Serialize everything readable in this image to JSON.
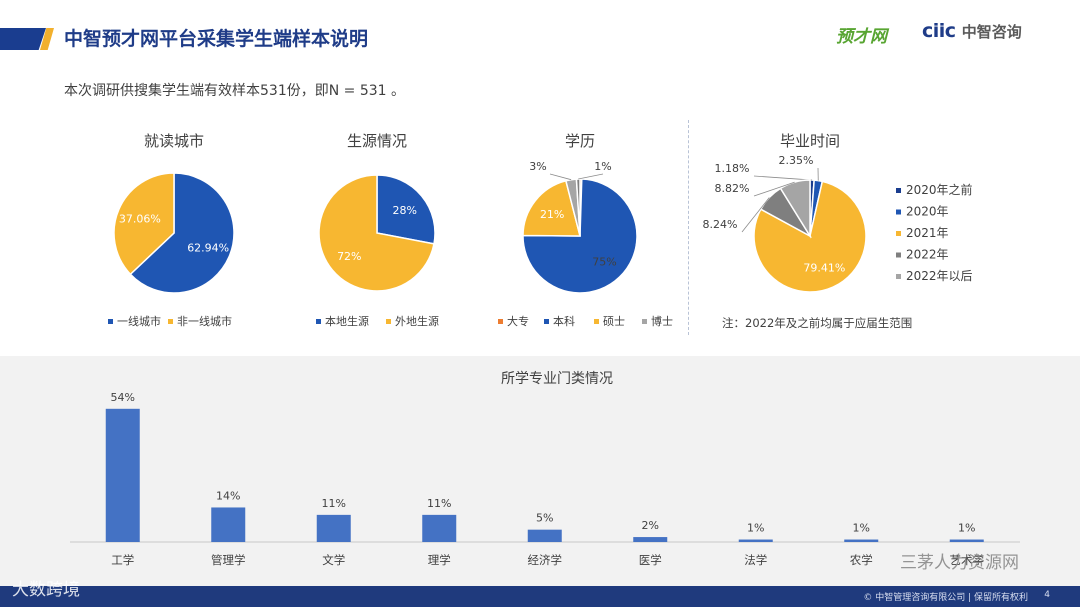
{
  "header": {
    "title": "中智预才网平台采集学生端样本说明",
    "logo_primary": "预才网",
    "logo_secondary_mark": "ciic",
    "logo_secondary_name": "中智咨询"
  },
  "subtitle": "本次调研供搜集学生端有效样本531份，即N = 531 。",
  "pies": [
    {
      "title": "就读城市",
      "slices": [
        {
          "label": "一线城市",
          "value": 62.94,
          "text": "62.94%",
          "color": "#1f56b3",
          "label_color": "#ffffff"
        },
        {
          "label": "非一线城市",
          "value": 37.06,
          "text": "37.06%",
          "color": "#f7b731",
          "label_color": "#ffffff"
        }
      ]
    },
    {
      "title": "生源情况",
      "slices": [
        {
          "label": "本地生源",
          "value": 28,
          "text": "28%",
          "color": "#1f56b3",
          "label_color": "#ffffff"
        },
        {
          "label": "外地生源",
          "value": 72,
          "text": "72%",
          "color": "#f7b731",
          "label_color": "#ffffff"
        }
      ]
    },
    {
      "title": "学历",
      "slices": [
        {
          "label": "大专",
          "value": 0.5,
          "text": "",
          "color": "#ed7d31",
          "label_color": "#ffffff"
        },
        {
          "label": "本科",
          "value": 75,
          "text": "75%",
          "color": "#1f56b3",
          "label_color": "#404040"
        },
        {
          "label": "硕士",
          "value": 21,
          "text": "21%",
          "color": "#f7b731",
          "label_color": "#ffffff"
        },
        {
          "label": "博士",
          "value": 3,
          "text": "3%",
          "color": "#a5a5a5",
          "label_color": "#404040"
        },
        {
          "label": "",
          "value": 1,
          "text": "1%",
          "color": "#7f7f7f",
          "label_color": "#404040"
        }
      ]
    },
    {
      "title": "毕业时间",
      "slices": [
        {
          "label": "2020年之前",
          "value": 1.18,
          "text": "1.18%",
          "color": "#1a3d8f",
          "label_color": "#404040"
        },
        {
          "label": "2020年",
          "value": 2.35,
          "text": "2.35%",
          "color": "#1f56b3",
          "label_color": "#404040"
        },
        {
          "label": "2021年",
          "value": 79.41,
          "text": "79.41%",
          "color": "#f7b731",
          "label_color": "#ffffff"
        },
        {
          "label": "2022年",
          "value": 8.24,
          "text": "8.24%",
          "color": "#7f7f7f",
          "label_color": "#404040"
        },
        {
          "label": "2022年以后",
          "value": 8.82,
          "text": "8.82%",
          "color": "#a5a5a5",
          "label_color": "#404040"
        }
      ],
      "note": "注：2022年及之前均属于应届生范围"
    }
  ],
  "chart_data": {
    "type": "bar",
    "title": "所学专业门类情况",
    "categories": [
      "工学",
      "管理学",
      "文学",
      "理学",
      "经济学",
      "医学",
      "法学",
      "农学",
      "艺术学"
    ],
    "values": [
      54,
      14,
      11,
      11,
      5,
      2,
      1,
      1,
      1
    ],
    "value_labels": [
      "54%",
      "14%",
      "11%",
      "11%",
      "5%",
      "2%",
      "1%",
      "1%",
      "1%"
    ],
    "color": "#4472c4",
    "ylim": [
      0,
      60
    ]
  },
  "footer": {
    "copyright": "© 中智管理咨询有限公司 | 保留所有权利",
    "page": "4"
  },
  "watermarks": {
    "left": "大数跨境",
    "right": "三茅人力资源网"
  }
}
